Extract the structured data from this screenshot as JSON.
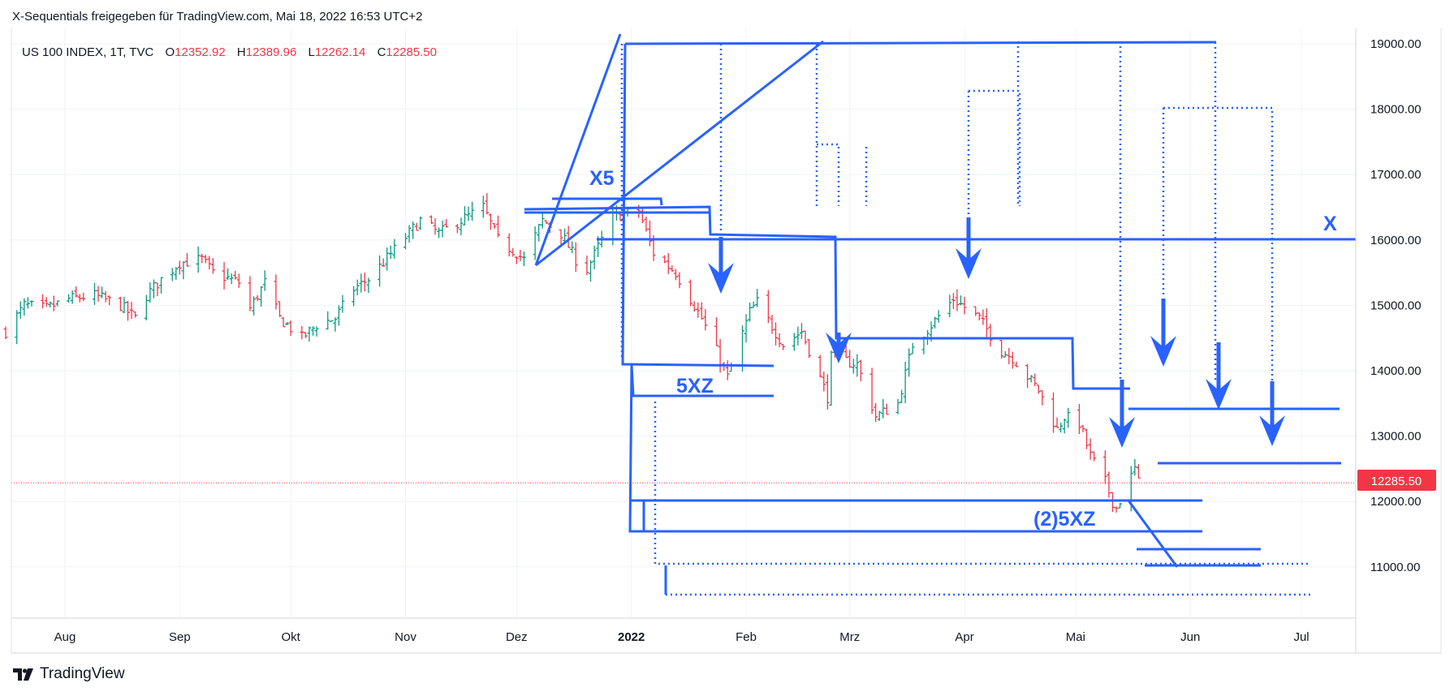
{
  "header": {
    "publisher_line": "X-Sequentials freigegeben für TradingView.com, Mai 18, 2022 16:53 UTC+2"
  },
  "legend": {
    "symbol": "US 100 INDEX, 1T, TVC",
    "o_label": "O",
    "o_value": "12352.92",
    "h_label": "H",
    "h_value": "12389.96",
    "l_label": "L",
    "l_value": "12262.14",
    "c_label": "C",
    "c_value": "12285.50"
  },
  "annotations": {
    "x5": "X5",
    "x": "X",
    "xz1": "5XZ",
    "xz2": "(2)5XZ"
  },
  "price_label": "12285.50",
  "footer": {
    "brand": "TradingView"
  },
  "colors": {
    "drawing": "#2962ff",
    "up": "#089981",
    "down": "#f23645",
    "price_tag": "#f23645",
    "legend_value": "#f23645"
  },
  "chart_data": {
    "type": "ohlc",
    "symbol": "US 100 INDEX",
    "interval": "1T",
    "ylim": [
      10300,
      19100
    ],
    "yticks": [
      "19000.00",
      "18000.00",
      "17000.00",
      "16000.00",
      "15000.00",
      "14000.00",
      "13000.00",
      "12000.00",
      "11000.00"
    ],
    "xticks": [
      "Aug",
      "Sep",
      "Okt",
      "Nov",
      "Dez",
      "2022",
      "Feb",
      "Mrz",
      "Apr",
      "Mai",
      "Jun",
      "Jul"
    ],
    "last_close": 12285.5,
    "price_series": [
      [
        "2021-07-16",
        14600
      ],
      [
        "2021-07-21",
        15000
      ],
      [
        "2021-07-27",
        14950
      ],
      [
        "2021-08-02",
        15100
      ],
      [
        "2021-08-09",
        15150
      ],
      [
        "2021-08-16",
        15000
      ],
      [
        "2021-08-20",
        14800
      ],
      [
        "2021-08-23",
        15150
      ],
      [
        "2021-08-27",
        15400
      ],
      [
        "2021-09-01",
        15650
      ],
      [
        "2021-09-07",
        15700
      ],
      [
        "2021-09-10",
        15500
      ],
      [
        "2021-09-17",
        15350
      ],
      [
        "2021-09-20",
        14950
      ],
      [
        "2021-09-24",
        15350
      ],
      [
        "2021-09-28",
        14800
      ],
      [
        "2021-10-04",
        14500
      ],
      [
        "2021-10-08",
        14700
      ],
      [
        "2021-10-13",
        14800
      ],
      [
        "2021-10-18",
        15250
      ],
      [
        "2021-10-22",
        15400
      ],
      [
        "2021-10-29",
        15850
      ],
      [
        "2021-11-05",
        16300
      ],
      [
        "2021-11-10",
        16100
      ],
      [
        "2021-11-16",
        16300
      ],
      [
        "2021-11-22",
        16500
      ],
      [
        "2021-11-26",
        16000
      ],
      [
        "2021-12-01",
        15800
      ],
      [
        "2021-12-03",
        15700
      ],
      [
        "2021-12-08",
        16300
      ],
      [
        "2021-12-13",
        16100
      ],
      [
        "2021-12-17",
        15700
      ],
      [
        "2021-12-20",
        15550
      ],
      [
        "2021-12-27",
        16350
      ],
      [
        "2022-01-03",
        16450
      ],
      [
        "2022-01-07",
        15800
      ],
      [
        "2022-01-13",
        15500
      ],
      [
        "2022-01-20",
        14800
      ],
      [
        "2022-01-24",
        14300
      ],
      [
        "2022-01-27",
        13900
      ],
      [
        "2022-02-02",
        14900
      ],
      [
        "2022-02-04",
        15050
      ],
      [
        "2022-02-11",
        14400
      ],
      [
        "2022-02-16",
        14600
      ],
      [
        "2022-02-23",
        13600
      ],
      [
        "2022-02-24",
        14200
      ],
      [
        "2022-03-03",
        14100
      ],
      [
        "2022-03-08",
        13300
      ],
      [
        "2022-03-14",
        13500
      ],
      [
        "2022-03-18",
        14400
      ],
      [
        "2022-03-23",
        14700
      ],
      [
        "2022-03-29",
        15100
      ],
      [
        "2022-04-05",
        14800
      ],
      [
        "2022-04-11",
        14300
      ],
      [
        "2022-04-14",
        14200
      ],
      [
        "2022-04-21",
        13700
      ],
      [
        "2022-04-26",
        13100
      ],
      [
        "2022-04-28",
        13300
      ],
      [
        "2022-05-02",
        13200
      ],
      [
        "2022-05-05",
        12700
      ],
      [
        "2022-05-09",
        12300
      ],
      [
        "2022-05-11",
        12000
      ],
      [
        "2022-05-12",
        11900
      ],
      [
        "2022-05-17",
        12500
      ],
      [
        "2022-05-18",
        12285.5
      ]
    ]
  }
}
